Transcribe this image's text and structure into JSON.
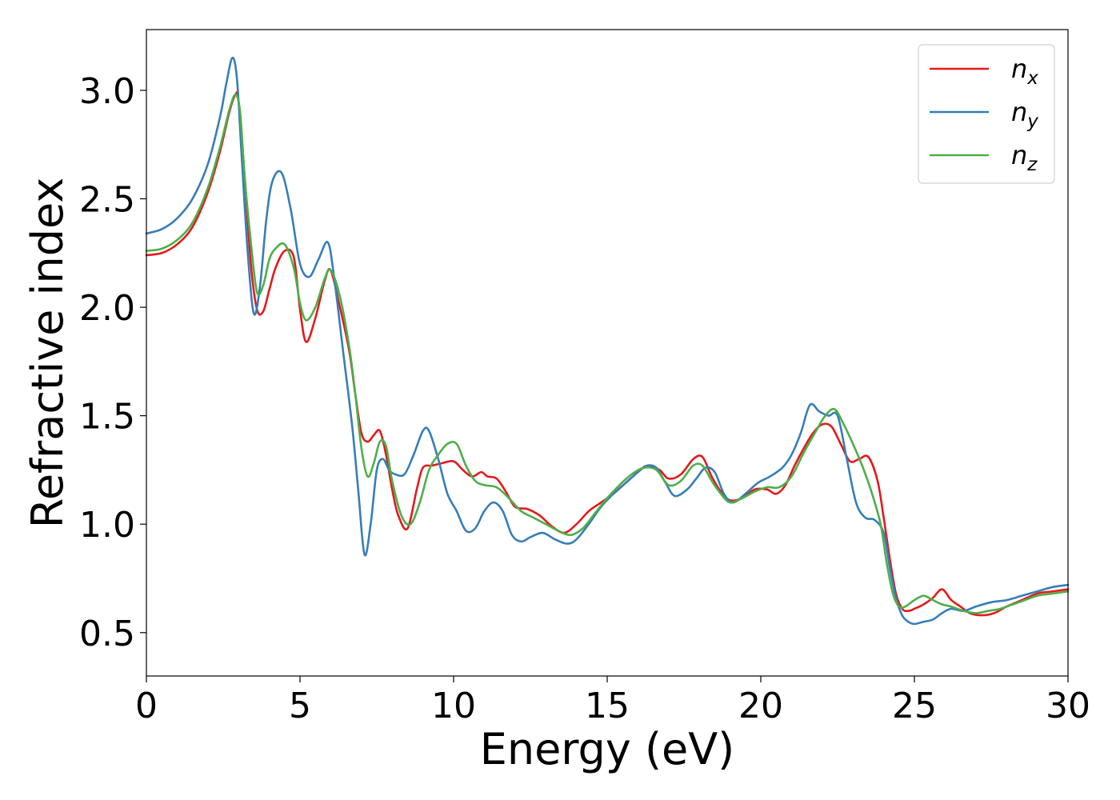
{
  "chart_data": {
    "type": "line",
    "title": "",
    "xlabel": "Energy (eV)",
    "ylabel": "Refractive index",
    "xlim": [
      0,
      30
    ],
    "ylim": [
      0.3,
      3.28
    ],
    "xticks": [
      0,
      5,
      10,
      15,
      20,
      25,
      30
    ],
    "yticks": [
      0.5,
      1.0,
      1.5,
      2.0,
      2.5,
      3.0
    ],
    "xtick_labels": [
      "0",
      "5",
      "10",
      "15",
      "20",
      "25",
      "30"
    ],
    "ytick_labels": [
      "0.5",
      "1.0",
      "1.5",
      "2.0",
      "2.5",
      "3.0"
    ],
    "grid": false,
    "legend_position": "top-right",
    "series": [
      {
        "name": "n_x",
        "label_base": "n",
        "label_sub": "x",
        "color": "#e41a1c",
        "x": [
          0,
          0.5,
          1,
          1.5,
          2,
          2.4,
          2.7,
          2.9,
          3.0,
          3.2,
          3.4,
          3.6,
          3.8,
          4.0,
          4.2,
          4.5,
          4.8,
          5.0,
          5.2,
          5.5,
          5.8,
          6.0,
          6.3,
          6.6,
          6.8,
          7.0,
          7.2,
          7.4,
          7.6,
          7.8,
          8.0,
          8.2,
          8.5,
          8.8,
          9.0,
          9.3,
          9.6,
          10.0,
          10.3,
          10.6,
          10.9,
          11.1,
          11.4,
          11.7,
          12.0,
          12.4,
          12.8,
          13.2,
          13.6,
          14.0,
          14.4,
          14.8,
          15.2,
          15.6,
          16.0,
          16.3,
          16.7,
          17.0,
          17.4,
          17.8,
          18.1,
          18.4,
          18.7,
          19.0,
          19.4,
          19.8,
          20.2,
          20.5,
          20.8,
          21.1,
          21.4,
          21.7,
          22.0,
          22.3,
          22.6,
          22.9,
          23.2,
          23.5,
          23.8,
          24.0,
          24.2,
          24.4,
          24.6,
          24.8,
          25.0,
          25.3,
          25.6,
          25.9,
          26.2,
          26.5,
          26.8,
          27.2,
          27.6,
          28.0,
          28.5,
          29.0,
          29.5,
          30.0
        ],
        "y": [
          2.24,
          2.25,
          2.29,
          2.37,
          2.53,
          2.72,
          2.9,
          2.98,
          2.95,
          2.6,
          2.2,
          1.99,
          1.98,
          2.08,
          2.18,
          2.26,
          2.23,
          1.99,
          1.84,
          1.95,
          2.12,
          2.17,
          2.0,
          1.8,
          1.6,
          1.42,
          1.38,
          1.41,
          1.43,
          1.32,
          1.16,
          1.04,
          0.98,
          1.16,
          1.26,
          1.27,
          1.28,
          1.29,
          1.25,
          1.22,
          1.24,
          1.22,
          1.21,
          1.15,
          1.08,
          1.07,
          1.04,
          0.99,
          0.96,
          1.0,
          1.06,
          1.1,
          1.14,
          1.19,
          1.24,
          1.27,
          1.25,
          1.21,
          1.23,
          1.3,
          1.31,
          1.22,
          1.15,
          1.11,
          1.12,
          1.16,
          1.16,
          1.14,
          1.18,
          1.27,
          1.35,
          1.42,
          1.46,
          1.45,
          1.37,
          1.29,
          1.3,
          1.31,
          1.2,
          1.03,
          0.84,
          0.68,
          0.61,
          0.6,
          0.61,
          0.63,
          0.66,
          0.7,
          0.65,
          0.62,
          0.59,
          0.58,
          0.59,
          0.62,
          0.65,
          0.68,
          0.69,
          0.7
        ]
      },
      {
        "name": "n_y",
        "label_base": "n",
        "label_sub": "y",
        "color": "#377eb8",
        "x": [
          0,
          0.5,
          1,
          1.5,
          2,
          2.4,
          2.6,
          2.8,
          2.95,
          3.1,
          3.3,
          3.5,
          3.7,
          3.9,
          4.1,
          4.4,
          4.7,
          5.0,
          5.3,
          5.6,
          5.9,
          6.1,
          6.4,
          6.7,
          6.9,
          7.1,
          7.3,
          7.5,
          7.7,
          7.9,
          8.1,
          8.4,
          8.7,
          9.0,
          9.2,
          9.5,
          9.8,
          10.1,
          10.4,
          10.7,
          11.0,
          11.3,
          11.6,
          11.9,
          12.2,
          12.5,
          12.9,
          13.3,
          13.7,
          14.0,
          14.4,
          14.8,
          15.2,
          15.6,
          16.0,
          16.3,
          16.6,
          16.9,
          17.2,
          17.6,
          17.9,
          18.2,
          18.5,
          18.8,
          19.1,
          19.5,
          19.9,
          20.3,
          20.7,
          21.0,
          21.3,
          21.6,
          21.9,
          22.2,
          22.5,
          22.8,
          23.1,
          23.4,
          23.7,
          24.0,
          24.2,
          24.4,
          24.6,
          24.8,
          25.0,
          25.3,
          25.6,
          25.9,
          26.2,
          26.6,
          27.0,
          27.5,
          28.0,
          28.5,
          29.0,
          29.5,
          30.0
        ],
        "y": [
          2.34,
          2.36,
          2.41,
          2.5,
          2.66,
          2.88,
          3.03,
          3.15,
          3.05,
          2.7,
          2.25,
          1.97,
          2.1,
          2.4,
          2.58,
          2.62,
          2.45,
          2.2,
          2.14,
          2.22,
          2.3,
          2.15,
          1.8,
          1.45,
          1.15,
          0.86,
          1.0,
          1.25,
          1.3,
          1.25,
          1.23,
          1.23,
          1.32,
          1.43,
          1.43,
          1.3,
          1.14,
          1.06,
          0.97,
          0.98,
          1.06,
          1.1,
          1.06,
          0.95,
          0.92,
          0.94,
          0.96,
          0.93,
          0.91,
          0.93,
          1.0,
          1.08,
          1.14,
          1.19,
          1.24,
          1.27,
          1.26,
          1.19,
          1.13,
          1.16,
          1.21,
          1.26,
          1.24,
          1.14,
          1.1,
          1.14,
          1.19,
          1.22,
          1.26,
          1.32,
          1.42,
          1.55,
          1.52,
          1.5,
          1.5,
          1.3,
          1.1,
          1.03,
          1.02,
          0.96,
          0.8,
          0.66,
          0.58,
          0.55,
          0.54,
          0.55,
          0.56,
          0.59,
          0.61,
          0.6,
          0.62,
          0.64,
          0.65,
          0.67,
          0.69,
          0.71,
          0.72
        ]
      },
      {
        "name": "n_z",
        "label_base": "n",
        "label_sub": "z",
        "color": "#4daf4a",
        "x": [
          0,
          0.5,
          1,
          1.5,
          2,
          2.4,
          2.7,
          2.9,
          3.05,
          3.2,
          3.4,
          3.6,
          3.8,
          4.0,
          4.2,
          4.5,
          4.8,
          5.0,
          5.2,
          5.5,
          5.8,
          6.0,
          6.3,
          6.6,
          6.8,
          7.0,
          7.2,
          7.4,
          7.6,
          7.8,
          8.0,
          8.3,
          8.6,
          8.9,
          9.2,
          9.5,
          9.8,
          10.1,
          10.4,
          10.7,
          11.0,
          11.4,
          11.8,
          12.2,
          12.6,
          13.0,
          13.4,
          13.8,
          14.2,
          14.6,
          15.0,
          15.4,
          15.8,
          16.2,
          16.6,
          17.0,
          17.4,
          17.8,
          18.1,
          18.4,
          18.7,
          19.0,
          19.4,
          19.8,
          20.2,
          20.6,
          21.0,
          21.4,
          21.8,
          22.1,
          22.4,
          22.7,
          23.0,
          23.3,
          23.6,
          23.9,
          24.1,
          24.3,
          24.5,
          24.7,
          25.0,
          25.3,
          25.6,
          25.9,
          26.2,
          26.6,
          27.0,
          27.4,
          27.8,
          28.2,
          28.6,
          29.0,
          29.5,
          30.0
        ],
        "y": [
          2.26,
          2.27,
          2.31,
          2.39,
          2.55,
          2.74,
          2.91,
          2.98,
          2.9,
          2.6,
          2.3,
          2.07,
          2.1,
          2.22,
          2.27,
          2.29,
          2.18,
          2.02,
          1.94,
          2.0,
          2.13,
          2.17,
          2.05,
          1.82,
          1.6,
          1.35,
          1.22,
          1.28,
          1.38,
          1.36,
          1.2,
          1.04,
          1.0,
          1.1,
          1.25,
          1.32,
          1.37,
          1.37,
          1.27,
          1.2,
          1.18,
          1.17,
          1.12,
          1.06,
          1.03,
          1.0,
          0.97,
          0.95,
          0.98,
          1.05,
          1.12,
          1.18,
          1.23,
          1.26,
          1.25,
          1.18,
          1.2,
          1.27,
          1.27,
          1.2,
          1.14,
          1.1,
          1.12,
          1.15,
          1.17,
          1.17,
          1.22,
          1.33,
          1.43,
          1.5,
          1.53,
          1.46,
          1.37,
          1.27,
          1.15,
          1.0,
          0.82,
          0.68,
          0.62,
          0.62,
          0.65,
          0.67,
          0.65,
          0.63,
          0.62,
          0.6,
          0.59,
          0.6,
          0.61,
          0.63,
          0.65,
          0.67,
          0.68,
          0.69
        ]
      }
    ]
  }
}
